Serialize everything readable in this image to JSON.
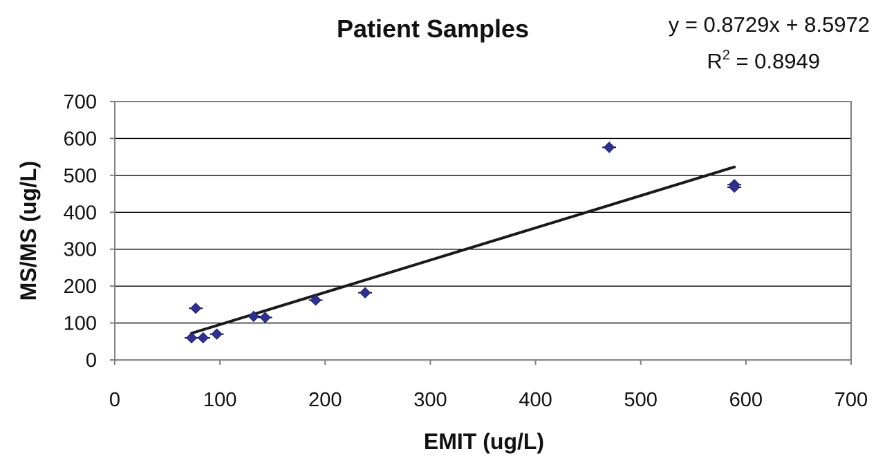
{
  "chart_data": {
    "type": "scatter",
    "title": "Patient Samples",
    "xlabel": "EMIT (ug/L)",
    "ylabel": "MS/MS (ug/L)",
    "xlim": [
      0,
      700
    ],
    "ylim": [
      0,
      700
    ],
    "xticks": [
      0,
      100,
      200,
      300,
      400,
      500,
      600,
      700
    ],
    "yticks": [
      0,
      100,
      200,
      300,
      400,
      500,
      600,
      700
    ],
    "grid": "horizontal",
    "legend": "none",
    "points": [
      {
        "x": 73,
        "y": 60
      },
      {
        "x": 77,
        "y": 140
      },
      {
        "x": 84,
        "y": 60
      },
      {
        "x": 97,
        "y": 70
      },
      {
        "x": 132,
        "y": 118
      },
      {
        "x": 143,
        "y": 115
      },
      {
        "x": 191,
        "y": 162
      },
      {
        "x": 238,
        "y": 182
      },
      {
        "x": 470,
        "y": 576
      },
      {
        "x": 589,
        "y": 475
      },
      {
        "x": 589,
        "y": 468
      }
    ],
    "trendline": {
      "slope": 0.8729,
      "intercept": 8.5972,
      "x_range": [
        73,
        589
      ],
      "equation_text": "y = 0.8729x + 8.5972",
      "r2_label": "R",
      "r2_sup": "2",
      "r2_value": " = 0.8949"
    },
    "colors": {
      "marker": "#2e3192",
      "trendline": "#1a1a1a",
      "gridline": "#000000",
      "axis": "#808080",
      "frame": "#808080"
    }
  }
}
